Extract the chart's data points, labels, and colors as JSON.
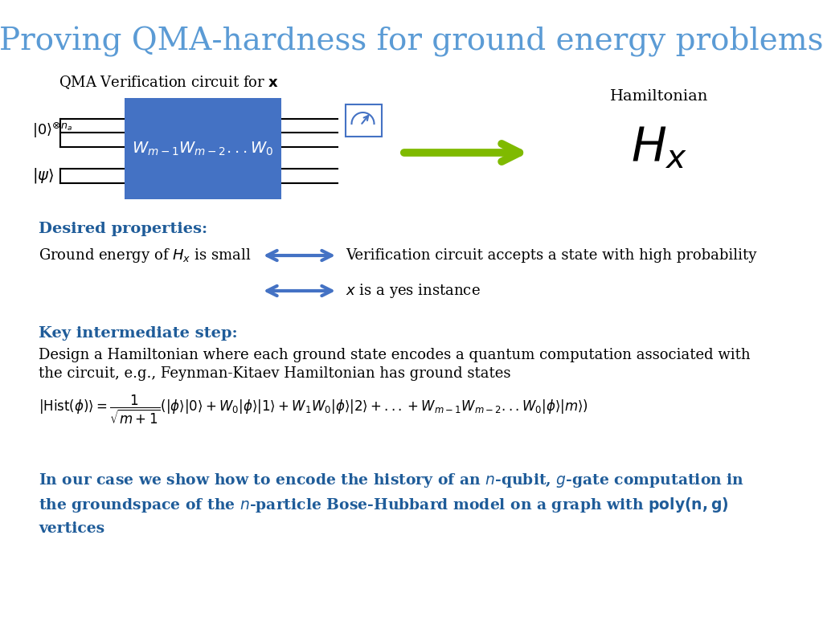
{
  "title": "Proving QMA-hardness for ground energy problems",
  "title_color": "#5B9BD5",
  "title_fontsize": 28,
  "bg_color": "#FFFFFF",
  "circuit_label": "QMA Verification circuit for $\\mathbf{x}$",
  "ket0_label": "$|0\\rangle^{\\otimes n_a}$",
  "ketpsi_label": "$|\\psi\\rangle$",
  "gate_label": "$W_{m-1}W_{m-2}...W_0$",
  "gate_color": "#4472C4",
  "gate_text_color": "#FFFFFF",
  "arrow_color": "#7FBA00",
  "hamiltonian_label": "Hamiltonian",
  "Hx_label": "$H_x$",
  "desired_header": "Desired properties:",
  "desired_color": "#1F5C99",
  "line1_left": "Ground energy of $H_x$ is small",
  "line1_right": "Verification circuit accepts a state with high probability",
  "line2_right": "$x$ is a yes instance",
  "dbl_arrow_color": "#4472C4",
  "key_header": "Key intermediate step:",
  "key_color": "#1F5C99",
  "key_text1": "Design a Hamiltonian where each ground state encodes a quantum computation associated with",
  "key_text2": "the circuit, e.g., Feynman-Kitaev Hamiltonian has ground states",
  "hist_formula": "$|\\mathrm{Hist}(\\phi)\\rangle = \\dfrac{1}{\\sqrt{m+1}}\\left(|\\phi\\rangle|0\\rangle + W_0|\\phi\\rangle|1\\rangle + W_1W_0|\\phi\\rangle|2\\rangle + ... + W_{m-1}W_{m-2}...W_0|\\phi\\rangle|m\\rangle\\right)$",
  "blue_text1": "In our case we show how to encode the history of an $\\mathit{n}$-qubit, $\\mathit{g}$-gate computation in",
  "blue_text2": "the groundspace of the $\\mathit{n}$-particle Bose-Hubbard model on a graph with $\\mathbf{poly(n,g)}$",
  "blue_text3": "vertices",
  "blue_text_color": "#1F5C99"
}
